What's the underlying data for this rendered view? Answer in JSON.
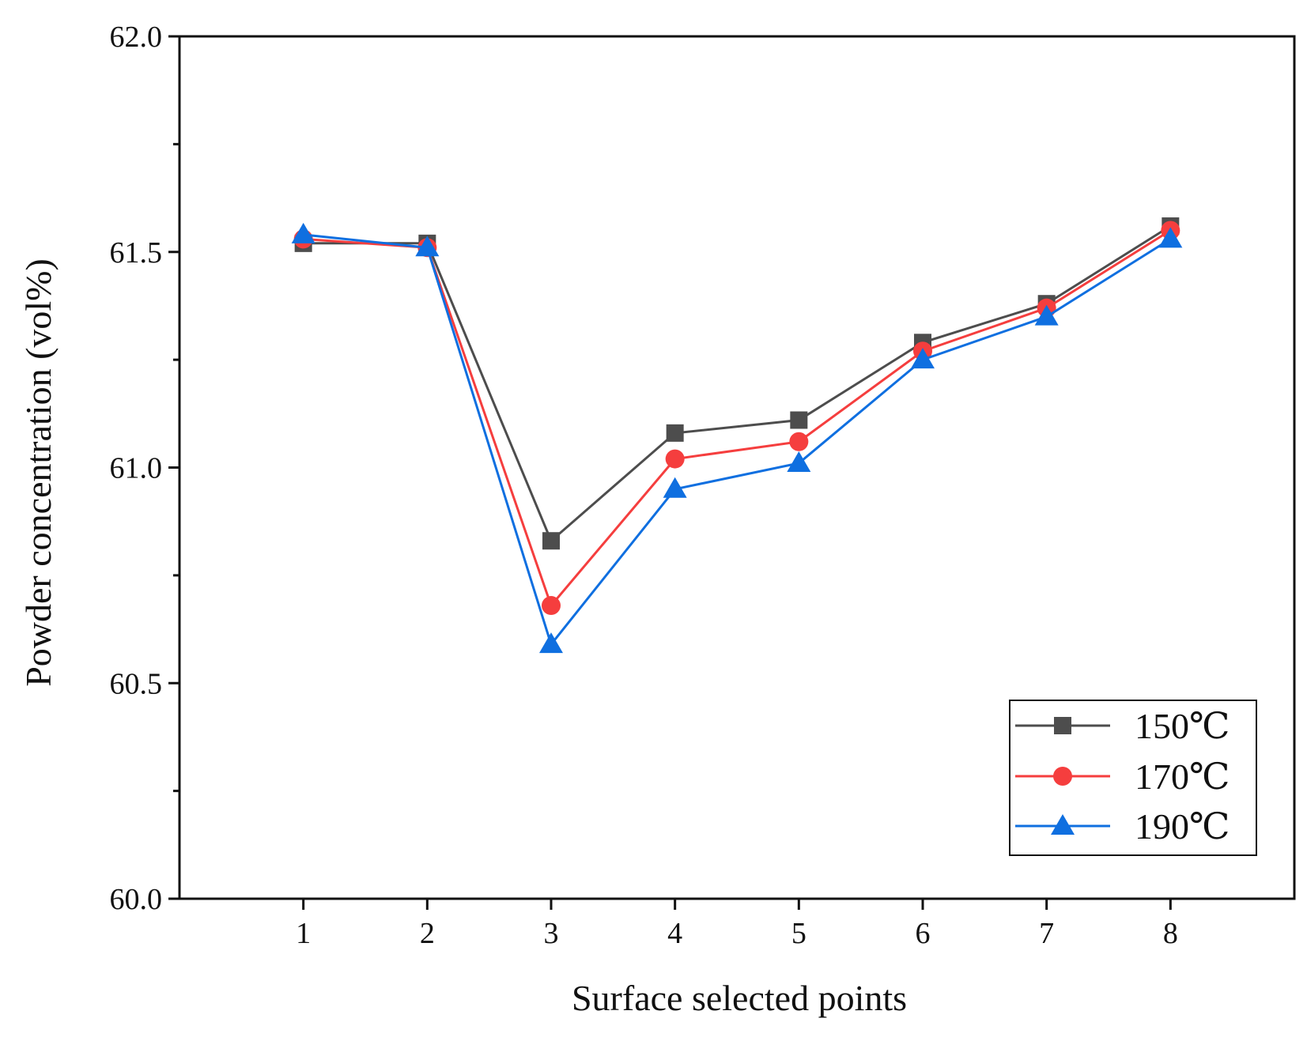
{
  "chart_data": {
    "type": "line",
    "title": "",
    "xlabel": "Surface selected points",
    "ylabel": "Powder concentration (vol%)",
    "x": [
      1,
      2,
      3,
      4,
      5,
      6,
      7,
      8
    ],
    "xtick_labels": [
      "1",
      "2",
      "3",
      "4",
      "5",
      "6",
      "7",
      "8"
    ],
    "xlim": [
      0,
      9
    ],
    "ylim": [
      60.0,
      62.0
    ],
    "ytick_labels": [
      "60.0",
      "60.5",
      "61.0",
      "61.5",
      "62.0"
    ],
    "ytick_values": [
      60.0,
      60.5,
      61.0,
      61.5,
      62.0
    ],
    "grid": false,
    "legend_position": "bottom-right",
    "series": [
      {
        "name": "150℃",
        "marker": "square",
        "color": "#4d4d4d",
        "values": [
          61.52,
          61.52,
          60.83,
          61.08,
          61.11,
          61.29,
          61.38,
          61.56
        ]
      },
      {
        "name": "170℃",
        "marker": "circle",
        "color": "#f53e3e",
        "values": [
          61.53,
          61.51,
          60.68,
          61.02,
          61.06,
          61.27,
          61.37,
          61.55
        ]
      },
      {
        "name": "190℃",
        "marker": "triangle",
        "color": "#0f6fe0",
        "values": [
          61.54,
          61.51,
          60.59,
          60.95,
          61.01,
          61.25,
          61.35,
          61.53
        ]
      }
    ]
  }
}
